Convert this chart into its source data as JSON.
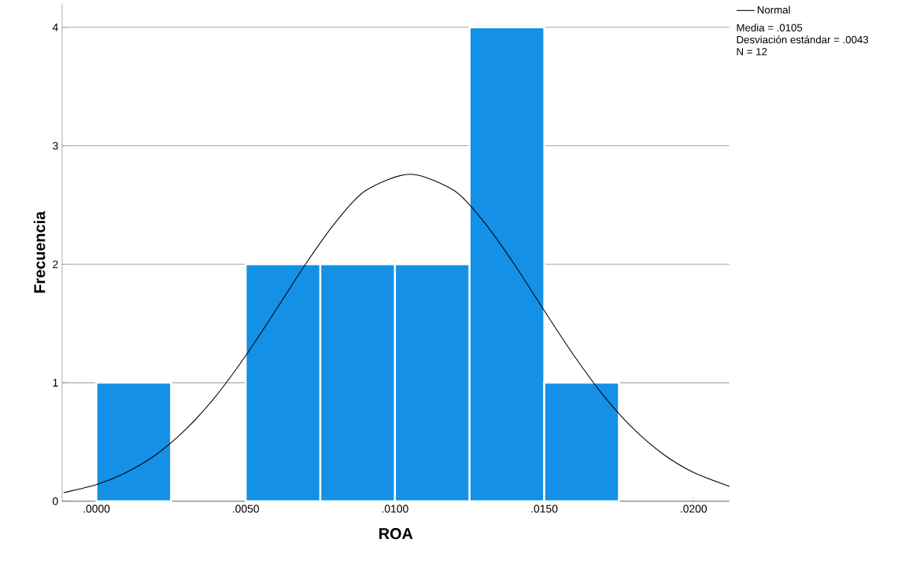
{
  "chart_data": {
    "type": "histogram",
    "xlabel": "ROA",
    "ylabel": "Frecuencia",
    "xlim": [
      -0.00115,
      0.0212
    ],
    "ylim": [
      0,
      4.2
    ],
    "xticks": [
      {
        "value": 0,
        "label": ".0000"
      },
      {
        "value": 0.005,
        "label": ".0050"
      },
      {
        "value": 0.01,
        "label": ".0100"
      },
      {
        "value": 0.015,
        "label": ".0150"
      },
      {
        "value": 0.02,
        "label": ".0200"
      }
    ],
    "yticks": [
      0,
      1,
      2,
      3,
      4
    ],
    "grid": "y",
    "legend": "top right",
    "annotations": [
      "Media = .0105",
      "Desviación estándar = .0043",
      "N = 12"
    ],
    "series": [
      {
        "color": "#1490e6",
        "bins": [
          0,
          0.0025,
          0.005,
          0.0075,
          0.01,
          0.0125,
          0.015,
          0.0175
        ],
        "values": [
          1,
          0,
          2,
          2,
          2,
          4,
          1
        ]
      },
      {
        "type": "line",
        "name": "Normal",
        "color": "#000000",
        "x": [
          -0.0011,
          0,
          0.001,
          0.002,
          0.003,
          0.004,
          0.005,
          0.006,
          0.007,
          0.008,
          0.009,
          0.0105,
          0.012,
          0.013,
          0.014,
          0.015,
          0.016,
          0.017,
          0.018,
          0.019,
          0.02,
          0.0212
        ],
        "values": [
          0.073,
          0.141,
          0.243,
          0.394,
          0.608,
          0.887,
          1.228,
          1.609,
          1.999,
          2.351,
          2.619,
          2.76,
          2.619,
          2.351,
          1.999,
          1.609,
          1.228,
          0.887,
          0.608,
          0.394,
          0.243,
          0.126
        ]
      }
    ]
  }
}
